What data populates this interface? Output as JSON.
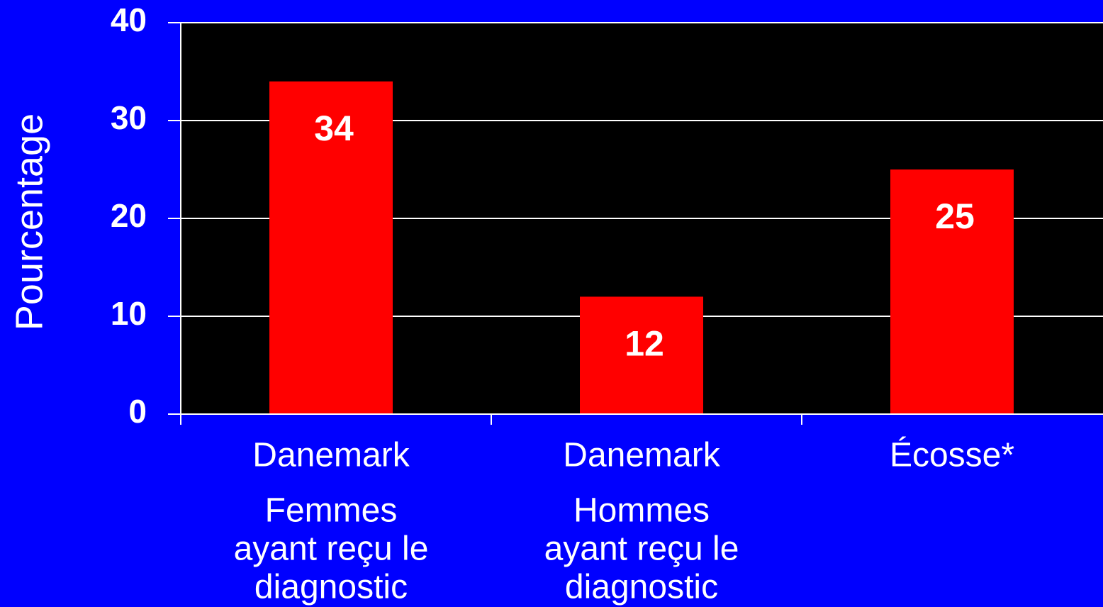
{
  "chart_data": {
    "type": "bar",
    "y_label": "Pourcentage",
    "categories": [
      [
        "Danemark",
        "Femmes",
        "ayant reçu le",
        "diagnostic"
      ],
      [
        "Danemark",
        "Hommes",
        "ayant reçu le",
        "diagnostic"
      ],
      [
        "Écosse*"
      ]
    ],
    "values": [
      34,
      12,
      25
    ],
    "color": "#ff0000",
    "ylim": [
      0,
      40
    ],
    "yticks": [
      0,
      10,
      20,
      30,
      40
    ],
    "grid": true
  }
}
